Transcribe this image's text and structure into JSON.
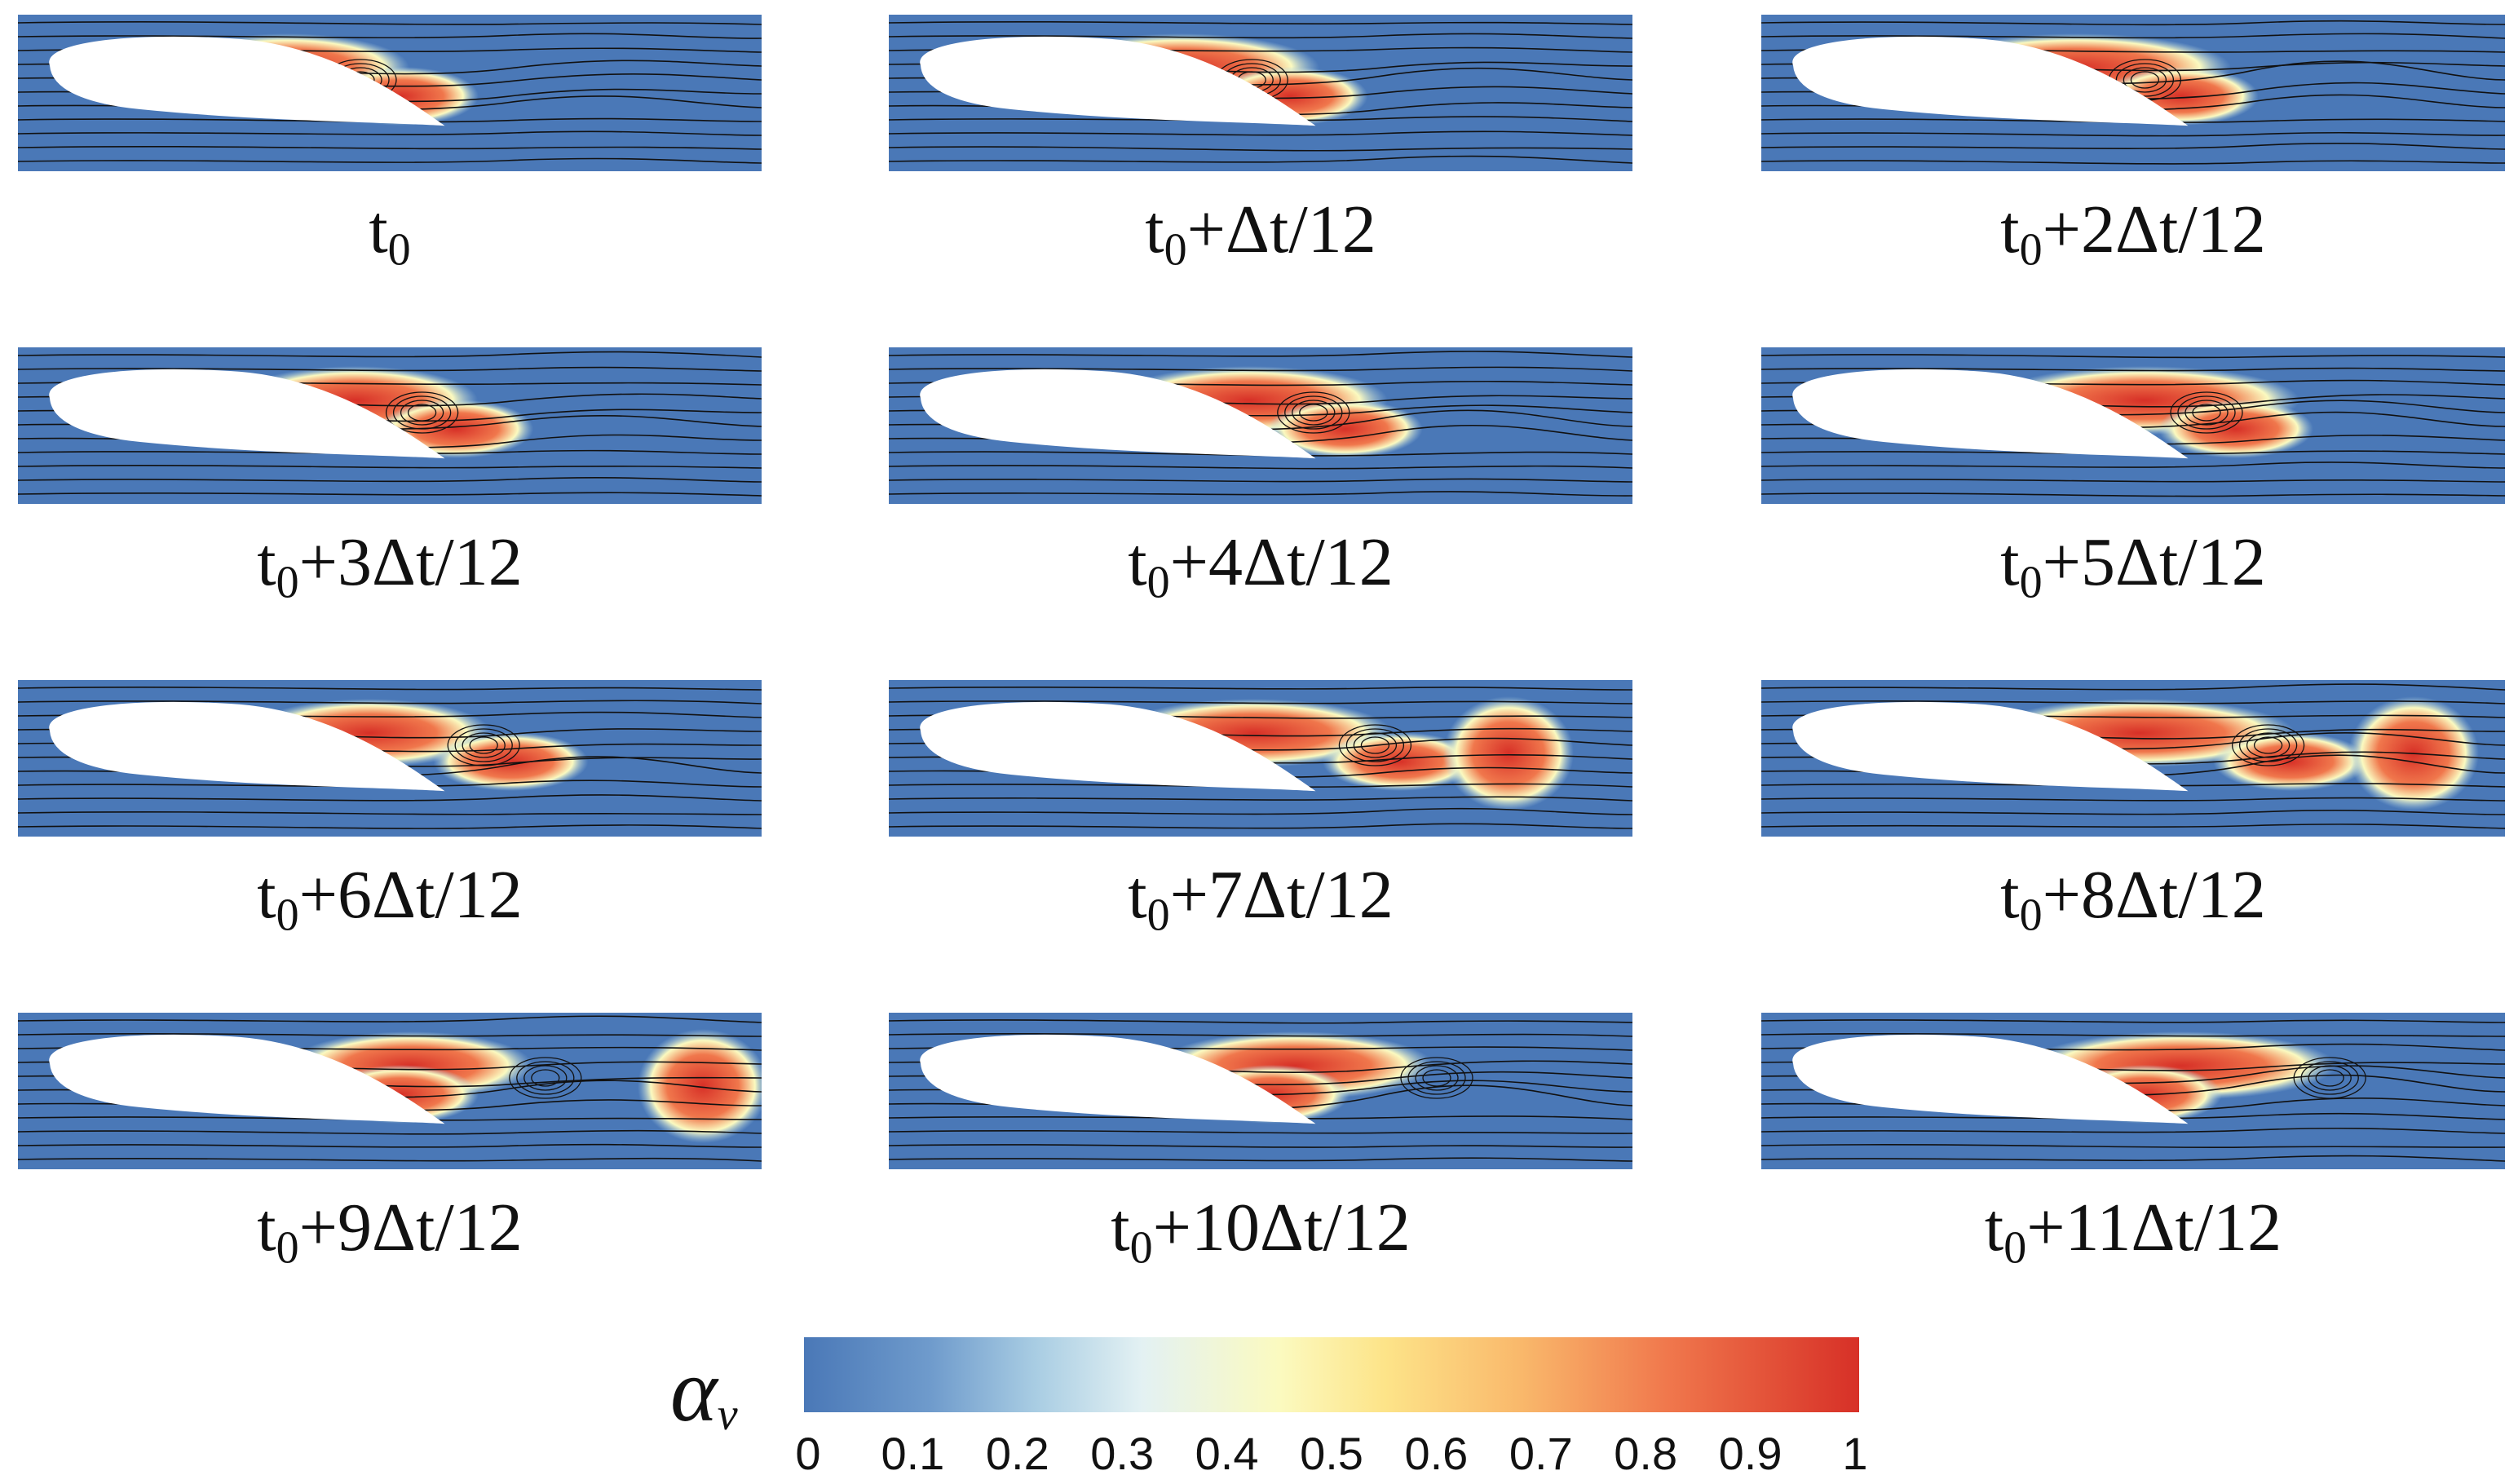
{
  "figure": {
    "panels": [
      {
        "caption_base": "t",
        "caption_sub": "0",
        "caption_rest": ""
      },
      {
        "caption_base": "t",
        "caption_sub": "0",
        "caption_rest": "+Δt/12"
      },
      {
        "caption_base": "t",
        "caption_sub": "0",
        "caption_rest": "+2Δt/12"
      },
      {
        "caption_base": "t",
        "caption_sub": "0",
        "caption_rest": "+3Δt/12"
      },
      {
        "caption_base": "t",
        "caption_sub": "0",
        "caption_rest": "+4Δt/12"
      },
      {
        "caption_base": "t",
        "caption_sub": "0",
        "caption_rest": "+5Δt/12"
      },
      {
        "caption_base": "t",
        "caption_sub": "0",
        "caption_rest": "+6Δt/12"
      },
      {
        "caption_base": "t",
        "caption_sub": "0",
        "caption_rest": "+7Δt/12"
      },
      {
        "caption_base": "t",
        "caption_sub": "0",
        "caption_rest": "+8Δt/12"
      },
      {
        "caption_base": "t",
        "caption_sub": "0",
        "caption_rest": "+9Δt/12"
      },
      {
        "caption_base": "t",
        "caption_sub": "0",
        "caption_rest": "+10Δt/12"
      },
      {
        "caption_base": "t",
        "caption_sub": "0",
        "caption_rest": "+11Δt/12"
      }
    ],
    "colorbar": {
      "symbol": "α",
      "symbol_sub": "v",
      "ticks": [
        "0",
        "0.1",
        "0.2",
        "0.3",
        "0.4",
        "0.5",
        "0.6",
        "0.7",
        "0.8",
        "0.9",
        "1"
      ],
      "colors": [
        "#4a78b7",
        "#a9cde3",
        "#fbfac0",
        "#f9b86b",
        "#d73027"
      ]
    }
  }
}
